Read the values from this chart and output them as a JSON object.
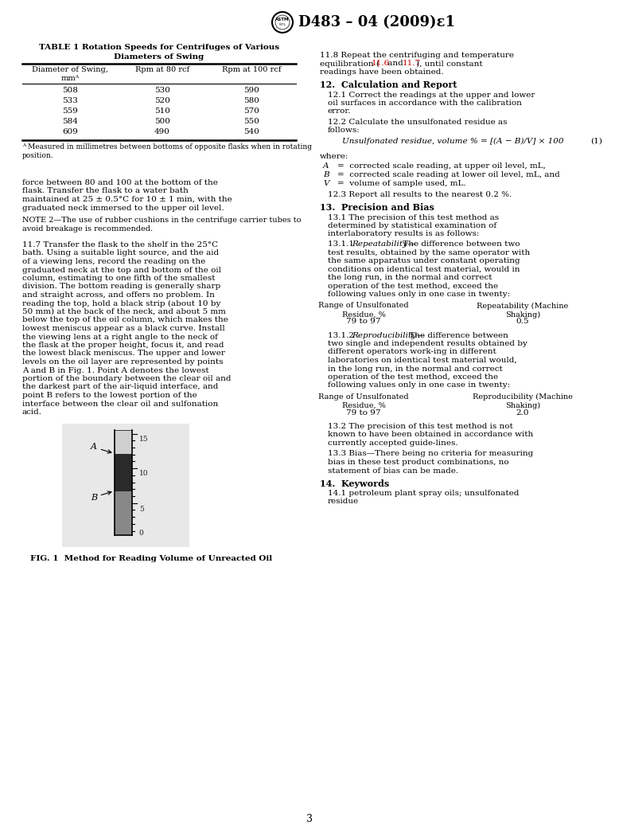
{
  "page_number": "3",
  "header_title": "D483 – 04 (2009)ε1",
  "bg_color": "#ffffff",
  "text_color": "#000000",
  "red_color": "#cc0000",
  "table": {
    "title": "TABLE 1 Rotation Speeds for Centrifuges of Various\nDiameters of Swing",
    "headers": [
      "Diameter of Swing,\nmmᴬ",
      "Rpm at 80 rcf",
      "Rpm at 100 rcf"
    ],
    "rows": [
      [
        "508",
        "530",
        "590"
      ],
      [
        "533",
        "520",
        "580"
      ],
      [
        "559",
        "510",
        "570"
      ],
      [
        "584",
        "500",
        "550"
      ],
      [
        "609",
        "490",
        "540"
      ]
    ],
    "footnote": "ᴬ Measured in millimetres between bottoms of opposite flasks when in rotating\nposition."
  }
}
